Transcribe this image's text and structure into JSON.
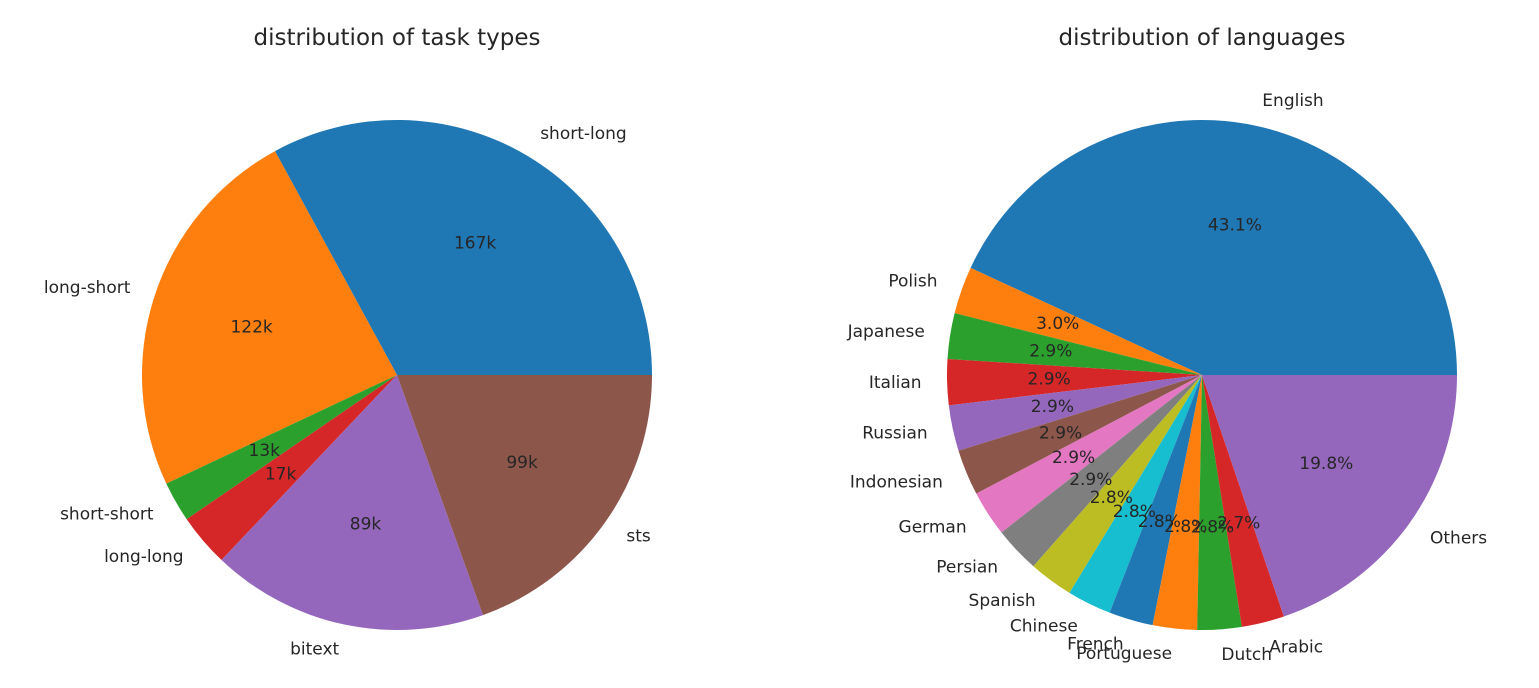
{
  "chart_data": [
    {
      "type": "pie",
      "title": "distribution of task types",
      "label_format": "count",
      "slices": [
        {
          "label": "short-long",
          "value": 167,
          "display": "167k",
          "color": "#1f77b4"
        },
        {
          "label": "long-short",
          "value": 122,
          "display": "122k",
          "color": "#ff7f0e"
        },
        {
          "label": "short-short",
          "value": 13,
          "display": "13k",
          "color": "#2ca02c"
        },
        {
          "label": "long-long",
          "value": 17,
          "display": "17k",
          "color": "#d62728"
        },
        {
          "label": "bitext",
          "value": 89,
          "display": "89k",
          "color": "#9467bd"
        },
        {
          "label": "sts",
          "value": 99,
          "display": "99k",
          "color": "#8c564b"
        }
      ]
    },
    {
      "type": "pie",
      "title": "distribution of languages",
      "label_format": "percent",
      "slices": [
        {
          "label": "English",
          "value": 43.1,
          "display": "43.1%",
          "color": "#1f77b4"
        },
        {
          "label": "Polish",
          "value": 3.0,
          "display": "3.0%",
          "color": "#ff7f0e"
        },
        {
          "label": "Japanese",
          "value": 2.9,
          "display": "2.9%",
          "color": "#2ca02c"
        },
        {
          "label": "Italian",
          "value": 2.9,
          "display": "2.9%",
          "color": "#d62728"
        },
        {
          "label": "Russian",
          "value": 2.9,
          "display": "2.9%",
          "color": "#9467bd"
        },
        {
          "label": "Indonesian",
          "value": 2.9,
          "display": "2.9%",
          "color": "#8c564b"
        },
        {
          "label": "German",
          "value": 2.9,
          "display": "2.9%",
          "color": "#e377c2"
        },
        {
          "label": "Persian",
          "value": 2.9,
          "display": "2.9%",
          "color": "#7f7f7f"
        },
        {
          "label": "Spanish",
          "value": 2.8,
          "display": "2.8%",
          "color": "#bcbd22"
        },
        {
          "label": "Chinese",
          "value": 2.8,
          "display": "2.8%",
          "color": "#17becf"
        },
        {
          "label": "French",
          "value": 2.8,
          "display": "2.8%",
          "color": "#1f77b4"
        },
        {
          "label": "Portuguese",
          "value": 2.8,
          "display": "2.8%",
          "color": "#ff7f0e"
        },
        {
          "label": "Dutch",
          "value": 2.8,
          "display": "2.8%",
          "color": "#2ca02c"
        },
        {
          "label": "Arabic",
          "value": 2.7,
          "display": "2.7%",
          "color": "#d62728"
        },
        {
          "label": "Others",
          "value": 19.8,
          "display": "19.8%",
          "color": "#9467bd"
        }
      ]
    }
  ]
}
